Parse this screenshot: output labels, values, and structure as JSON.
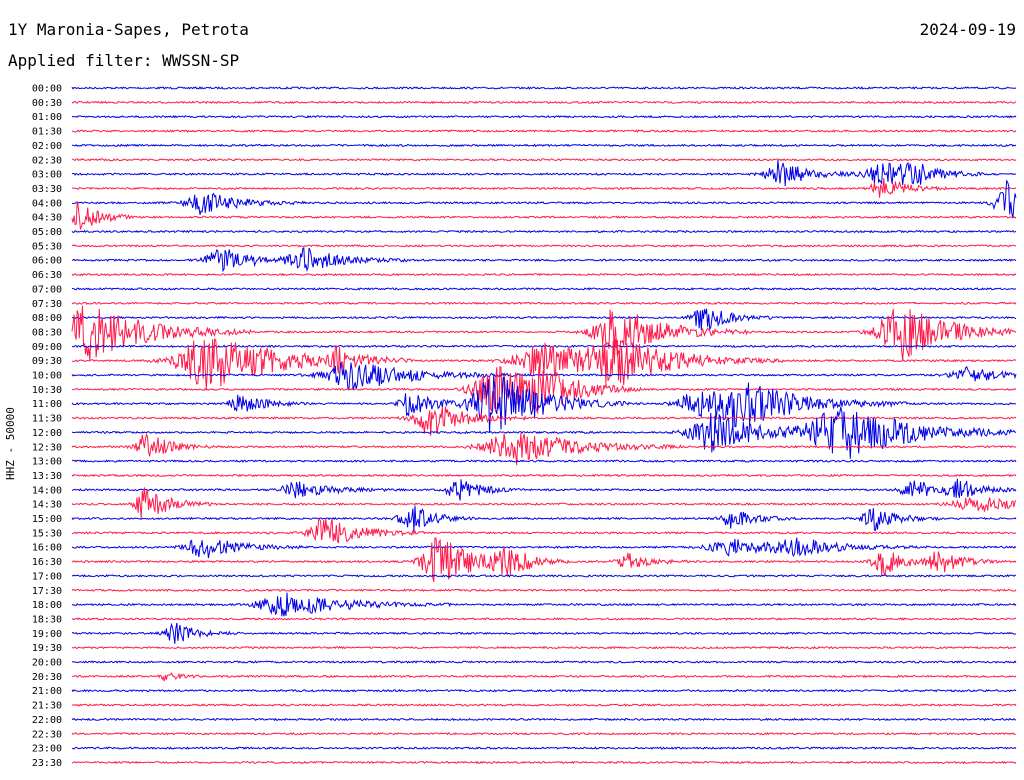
{
  "header": {
    "title": "1Y Maronia-Sapes, Petrota",
    "date": "2024-09-19",
    "filter": "Applied filter: WWSSN-SP"
  },
  "chart_data": {
    "type": "line",
    "title": "1Y Maronia-Sapes, Petrota",
    "ylabel": "HHZ - 50000",
    "colors": [
      "#0000e6",
      "#ff1a4a"
    ],
    "tick_labels": [
      "00:00",
      "00:30",
      "01:00",
      "01:30",
      "02:00",
      "02:30",
      "03:00",
      "03:30",
      "04:00",
      "04:30",
      "05:00",
      "05:30",
      "06:00",
      "06:30",
      "07:00",
      "07:30",
      "08:00",
      "08:30",
      "09:00",
      "09:30",
      "10:00",
      "10:30",
      "11:00",
      "11:30",
      "12:00",
      "12:30",
      "13:00",
      "13:30",
      "14:00",
      "14:30",
      "15:00",
      "15:30",
      "16:00",
      "16:30",
      "17:00",
      "17:30",
      "18:00",
      "18:30",
      "19:00",
      "19:30",
      "20:00",
      "20:30",
      "21:00",
      "21:30",
      "22:00",
      "22:30",
      "23:00",
      "23:30"
    ],
    "x_range_minutes": [
      0,
      30
    ],
    "events": [
      {
        "row": 6,
        "t": 0.75,
        "amp": 14,
        "w": 0.025
      },
      {
        "row": 6,
        "t": 0.86,
        "amp": 12,
        "w": 0.03
      },
      {
        "row": 6,
        "t": 0.89,
        "amp": 10,
        "w": 0.02
      },
      {
        "row": 7,
        "t": 0.86,
        "amp": 12,
        "w": 0.02
      },
      {
        "row": 8,
        "t": 0.14,
        "amp": 12,
        "w": 0.03
      },
      {
        "row": 8,
        "t": 0.99,
        "amp": 22,
        "w": 0.02
      },
      {
        "row": 9,
        "t": 0.0,
        "amp": 20,
        "w": 0.02
      },
      {
        "row": 12,
        "t": 0.16,
        "amp": 12,
        "w": 0.03
      },
      {
        "row": 12,
        "t": 0.25,
        "amp": 12,
        "w": 0.03
      },
      {
        "row": 16,
        "t": 0.67,
        "amp": 14,
        "w": 0.02
      },
      {
        "row": 17,
        "t": 0.02,
        "amp": 28,
        "w": 0.05
      },
      {
        "row": 17,
        "t": 0.58,
        "amp": 26,
        "w": 0.04
      },
      {
        "row": 17,
        "t": 0.88,
        "amp": 30,
        "w": 0.04
      },
      {
        "row": 19,
        "t": 0.15,
        "amp": 30,
        "w": 0.06
      },
      {
        "row": 19,
        "t": 0.28,
        "amp": 10,
        "w": 0.02
      },
      {
        "row": 19,
        "t": 0.5,
        "amp": 18,
        "w": 0.05
      },
      {
        "row": 19,
        "t": 0.58,
        "amp": 22,
        "w": 0.05
      },
      {
        "row": 20,
        "t": 0.3,
        "amp": 16,
        "w": 0.05
      },
      {
        "row": 20,
        "t": 0.95,
        "amp": 8,
        "w": 0.03
      },
      {
        "row": 21,
        "t": 0.45,
        "amp": 24,
        "w": 0.04
      },
      {
        "row": 21,
        "t": 0.5,
        "amp": 16,
        "w": 0.03
      },
      {
        "row": 22,
        "t": 0.18,
        "amp": 10,
        "w": 0.02
      },
      {
        "row": 22,
        "t": 0.36,
        "amp": 14,
        "w": 0.02
      },
      {
        "row": 22,
        "t": 0.45,
        "amp": 32,
        "w": 0.04
      },
      {
        "row": 22,
        "t": 0.66,
        "amp": 12,
        "w": 0.03
      },
      {
        "row": 22,
        "t": 0.71,
        "amp": 24,
        "w": 0.05
      },
      {
        "row": 23,
        "t": 0.38,
        "amp": 18,
        "w": 0.03
      },
      {
        "row": 24,
        "t": 0.68,
        "amp": 20,
        "w": 0.04
      },
      {
        "row": 24,
        "t": 0.82,
        "amp": 28,
        "w": 0.06
      },
      {
        "row": 25,
        "t": 0.08,
        "amp": 14,
        "w": 0.02
      },
      {
        "row": 25,
        "t": 0.47,
        "amp": 18,
        "w": 0.05
      },
      {
        "row": 28,
        "t": 0.24,
        "amp": 8,
        "w": 0.03
      },
      {
        "row": 28,
        "t": 0.41,
        "amp": 12,
        "w": 0.02
      },
      {
        "row": 28,
        "t": 0.89,
        "amp": 12,
        "w": 0.02
      },
      {
        "row": 28,
        "t": 0.94,
        "amp": 10,
        "w": 0.02
      },
      {
        "row": 29,
        "t": 0.08,
        "amp": 18,
        "w": 0.02
      },
      {
        "row": 29,
        "t": 0.96,
        "amp": 8,
        "w": 0.04
      },
      {
        "row": 30,
        "t": 0.36,
        "amp": 14,
        "w": 0.02
      },
      {
        "row": 30,
        "t": 0.7,
        "amp": 10,
        "w": 0.02
      },
      {
        "row": 30,
        "t": 0.85,
        "amp": 12,
        "w": 0.02
      },
      {
        "row": 31,
        "t": 0.27,
        "amp": 16,
        "w": 0.03
      },
      {
        "row": 32,
        "t": 0.14,
        "amp": 12,
        "w": 0.03
      },
      {
        "row": 32,
        "t": 0.7,
        "amp": 8,
        "w": 0.04
      },
      {
        "row": 32,
        "t": 0.77,
        "amp": 8,
        "w": 0.04
      },
      {
        "row": 33,
        "t": 0.39,
        "amp": 26,
        "w": 0.03
      },
      {
        "row": 33,
        "t": 0.46,
        "amp": 16,
        "w": 0.02
      },
      {
        "row": 33,
        "t": 0.59,
        "amp": 8,
        "w": 0.02
      },
      {
        "row": 33,
        "t": 0.86,
        "amp": 14,
        "w": 0.02
      },
      {
        "row": 33,
        "t": 0.92,
        "amp": 12,
        "w": 0.02
      },
      {
        "row": 36,
        "t": 0.23,
        "amp": 12,
        "w": 0.05
      },
      {
        "row": 38,
        "t": 0.11,
        "amp": 10,
        "w": 0.02
      },
      {
        "row": 41,
        "t": 0.1,
        "amp": 5,
        "w": 0.01
      }
    ]
  }
}
